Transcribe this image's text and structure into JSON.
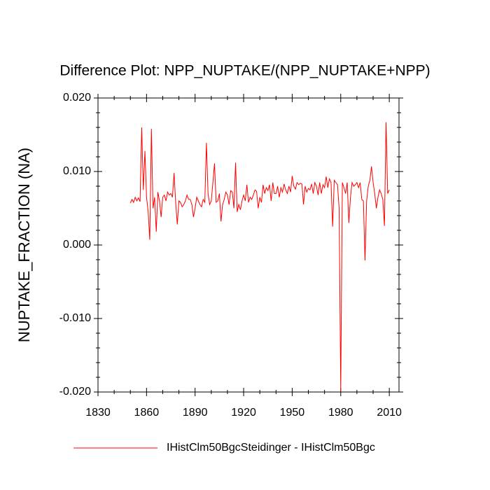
{
  "chart_data": {
    "type": "line",
    "title": "Difference Plot: NPP_NUPTAKE/(NPP_NUPTAKE+NPP)",
    "y_label": "NUPTAKE_FRACTION  (NA)",
    "x": [
      1850,
      1851,
      1852,
      1853,
      1854,
      1855,
      1856,
      1857,
      1858,
      1859,
      1860,
      1861,
      1862,
      1863,
      1864,
      1865,
      1866,
      1867,
      1868,
      1869,
      1870,
      1871,
      1872,
      1873,
      1874,
      1875,
      1876,
      1877,
      1878,
      1879,
      1880,
      1881,
      1882,
      1883,
      1884,
      1885,
      1886,
      1887,
      1888,
      1889,
      1890,
      1891,
      1892,
      1893,
      1894,
      1895,
      1896,
      1897,
      1898,
      1899,
      1900,
      1901,
      1902,
      1903,
      1904,
      1905,
      1906,
      1907,
      1908,
      1909,
      1910,
      1911,
      1912,
      1913,
      1914,
      1915,
      1916,
      1917,
      1918,
      1919,
      1920,
      1921,
      1922,
      1923,
      1924,
      1925,
      1926,
      1927,
      1928,
      1929,
      1930,
      1931,
      1932,
      1933,
      1934,
      1935,
      1936,
      1937,
      1938,
      1939,
      1940,
      1941,
      1942,
      1943,
      1944,
      1945,
      1946,
      1947,
      1948,
      1949,
      1950,
      1951,
      1952,
      1953,
      1954,
      1955,
      1956,
      1957,
      1958,
      1959,
      1960,
      1961,
      1962,
      1963,
      1964,
      1965,
      1966,
      1967,
      1968,
      1969,
      1970,
      1971,
      1972,
      1973,
      1974,
      1975,
      1976,
      1977,
      1978,
      1979,
      1980,
      1981,
      1982,
      1983,
      1984,
      1985,
      1986,
      1987,
      1988,
      1989,
      1990,
      1991,
      1992,
      1993,
      1994,
      1995,
      1996,
      1997,
      1998,
      1999,
      2000,
      2001,
      2002,
      2003,
      2004,
      2005,
      2006,
      2007,
      2008,
      2009,
      2010
    ],
    "series": [
      {
        "name": "IHistClm50BgcSteidinger - IHistClm50Bgc",
        "color": "#ff0000",
        "values": [
          0.0057,
          0.0062,
          0.0058,
          0.0065,
          0.006,
          0.0064,
          0.0059,
          0.016,
          0.0075,
          0.0128,
          0.0065,
          0.0045,
          0.0007,
          0.0158,
          0.005,
          0.0065,
          0.0018,
          0.0072,
          0.006,
          0.0038,
          0.0065,
          0.0068,
          0.006,
          0.0072,
          0.0068,
          0.007,
          0.0065,
          0.0098,
          0.0058,
          0.0028,
          0.006,
          0.0058,
          0.0052,
          0.0055,
          0.006,
          0.0068,
          0.0062,
          0.0062,
          0.0055,
          0.0038,
          0.005,
          0.0065,
          0.006,
          0.0055,
          0.0052,
          0.0062,
          0.0058,
          0.0139,
          0.007,
          0.0055,
          0.006,
          0.0085,
          0.0111,
          0.0058,
          0.006,
          0.007,
          0.0032,
          0.0055,
          0.0062,
          0.0072,
          0.0068,
          0.0055,
          0.0074,
          0.0072,
          0.005,
          0.0112,
          0.0045,
          0.0055,
          0.0048,
          0.006,
          0.0068,
          0.006,
          0.0082,
          0.0058,
          0.0065,
          0.0062,
          0.0068,
          0.0075,
          0.0073,
          0.005,
          0.0065,
          0.0058,
          0.0082,
          0.007,
          0.0078,
          0.0074,
          0.0082,
          0.006,
          0.0085,
          0.007,
          0.007,
          0.008,
          0.0065,
          0.0078,
          0.0072,
          0.0083,
          0.0075,
          0.007,
          0.008,
          0.0072,
          0.0094,
          0.008,
          0.0076,
          0.0085,
          0.0082,
          0.0084,
          0.0083,
          0.0055,
          0.008,
          0.0072,
          0.0077,
          0.0075,
          0.0083,
          0.007,
          0.0085,
          0.008,
          0.0068,
          0.0085,
          0.007,
          0.0082,
          0.0078,
          0.0093,
          0.0078,
          0.009,
          0.0085,
          0.0025,
          0.0088,
          0.0085,
          0.0082,
          0.005,
          -0.0198,
          0.0085,
          0.0078,
          0.007,
          0.0085,
          0.003,
          0.0065,
          0.0085,
          0.008,
          0.0082,
          0.0085,
          0.0078,
          0.0085,
          0.0062,
          0.006,
          -0.0021,
          0.006,
          0.008,
          0.0088,
          0.0107,
          0.0085,
          0.007,
          0.005,
          0.0065,
          0.0075,
          0.007,
          0.0062,
          0.0026,
          0.0167,
          0.007,
          0.0075
        ]
      }
    ],
    "xlim": [
      1830,
      2016
    ],
    "ylim": [
      -0.02,
      0.02
    ],
    "xticks": [
      1830,
      1860,
      1890,
      1920,
      1950,
      1980,
      2010
    ],
    "xminorticks": [
      1840,
      1850,
      1870,
      1880,
      1900,
      1910,
      1930,
      1940,
      1960,
      1970,
      1990,
      2000
    ],
    "yticks": [
      {
        "value": 0.02,
        "label": "0.020"
      },
      {
        "value": 0.01,
        "label": "0.010"
      },
      {
        "value": 0,
        "label": "0.000"
      },
      {
        "value": -0.01,
        "label": "-0.010"
      },
      {
        "value": -0.02,
        "label": "-0.020"
      }
    ],
    "yminorticks": [
      -0.018,
      -0.016,
      -0.014,
      -0.012,
      -0.008,
      -0.006,
      -0.004,
      -0.002,
      0.002,
      0.004,
      0.006,
      0.008,
      0.012,
      0.014,
      0.016,
      0.018
    ],
    "legend": "bottom"
  }
}
